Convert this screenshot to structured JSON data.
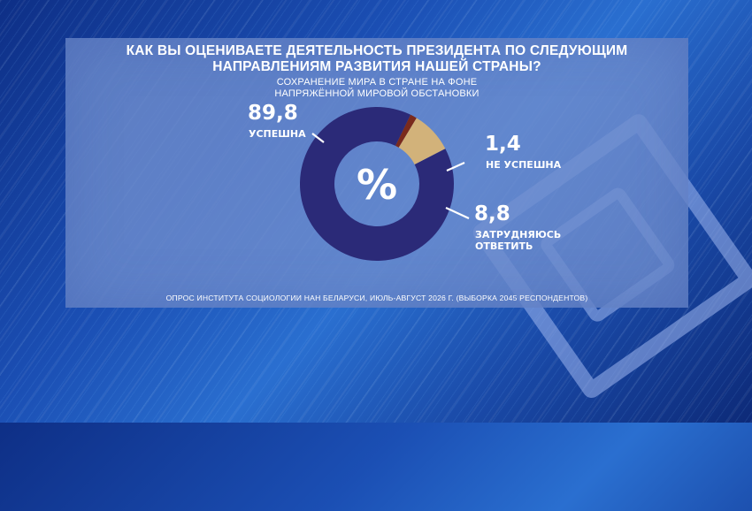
{
  "title_line1": "КАК ВЫ ОЦЕНИВАЕТЕ ДЕЯТЕЛЬНОСТЬ ПРЕЗИДЕНТА ПО СЛЕДУЮЩИМ",
  "title_line2": "НАПРАВЛЕНИЯМ РАЗВИТИЯ НАШЕЙ СТРАНЫ?",
  "subtitle_line1": "СОХРАНЕНИЕ МИРА В СТРАНЕ НА ФОНЕ",
  "subtitle_line2": "НАПРЯЖЁННОЙ МИРОВОЙ ОБСТАНОВКИ",
  "center_symbol": "%",
  "footer": "ОПРОС ИНСТИТУТА СОЦИОЛОГИИ НАН БЕЛАРУСИ, ИЮЛЬ-АВГУСТ 2026 Г. (ВЫБОРКА 2045 РЕСПОНДЕНТОВ)",
  "chart_data": {
    "type": "pie",
    "donut": true,
    "slices": [
      {
        "label_lines": [
          "УСПЕШНА"
        ],
        "value": 89.8,
        "display": "89,8",
        "color": "#2b2a78"
      },
      {
        "label_lines": [
          "НЕ УСПЕШНА"
        ],
        "value": 1.4,
        "display": "1,4",
        "color": "#7a2a1c"
      },
      {
        "label_lines": [
          "ЗАТРУДНЯЮСЬ",
          "ОТВЕТИТЬ"
        ],
        "value": 8.8,
        "display": "8,8",
        "color": "#d2b27a"
      }
    ]
  }
}
